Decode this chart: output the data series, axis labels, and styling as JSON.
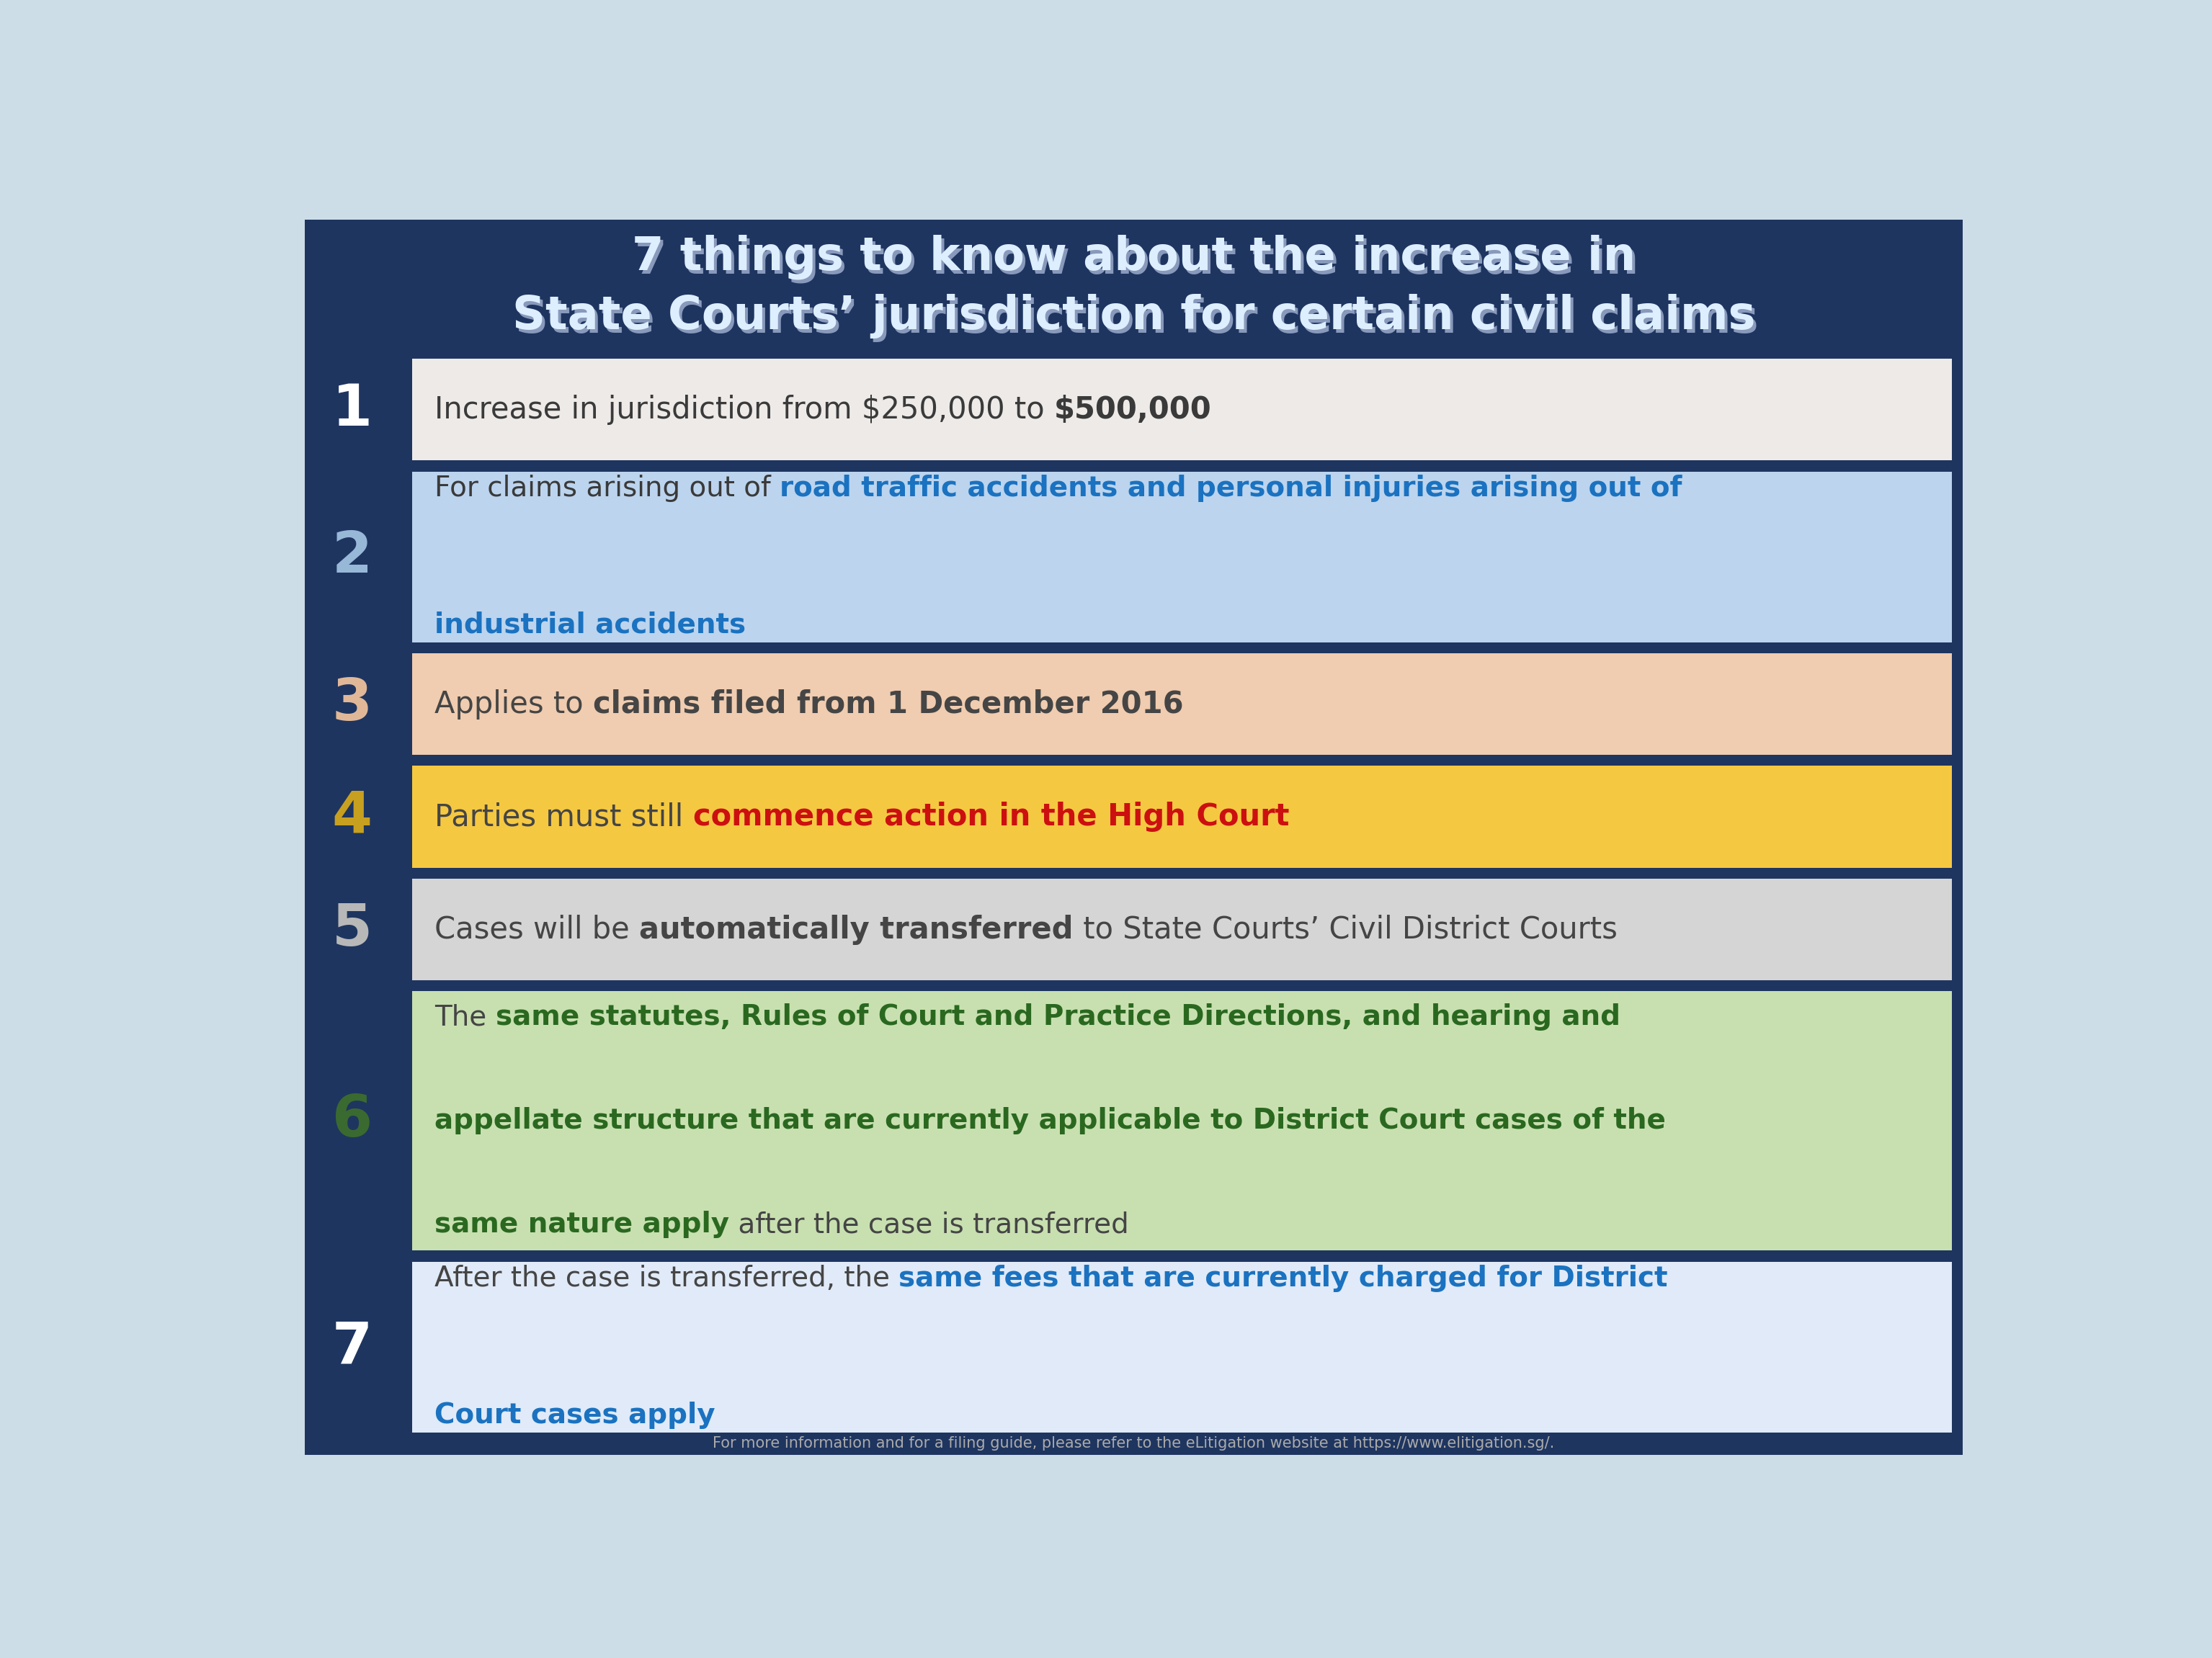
{
  "title_line1": "7 things to know about the increase in",
  "title_line2": "State Courts’ jurisdiction for certain civil claims",
  "bg_outer": "#ccdde8",
  "bg_main": "#1e3560",
  "footer_text": "For more information and for a filing guide, please refer to the eLitigation website at https://www.elitigation.sg/.",
  "items": [
    {
      "number": "1",
      "number_color": "#ffffff",
      "box_color": "#edeae8",
      "n_lines": 1,
      "lines": [
        [
          {
            "text": "Increase in jurisdiction from $250,000 to ",
            "bold": false,
            "color": "#3a3a3a"
          },
          {
            "text": "$500,000",
            "bold": true,
            "color": "#3a3a3a"
          }
        ]
      ]
    },
    {
      "number": "2",
      "number_color": "#98b8d8",
      "box_color": "#bcd4ee",
      "n_lines": 2,
      "lines": [
        [
          {
            "text": "For claims arising out of ",
            "bold": false,
            "color": "#3a3a3a"
          },
          {
            "text": "road traffic accidents and personal injuries arising out of",
            "bold": true,
            "color": "#1a72c0"
          }
        ],
        [
          {
            "text": "industrial accidents",
            "bold": true,
            "color": "#1a72c0"
          }
        ]
      ]
    },
    {
      "number": "3",
      "number_color": "#e0b898",
      "box_color": "#f0ccb0",
      "n_lines": 1,
      "lines": [
        [
          {
            "text": "Applies to ",
            "bold": false,
            "color": "#454545"
          },
          {
            "text": "claims filed from 1 December 2016",
            "bold": true,
            "color": "#454545"
          }
        ]
      ]
    },
    {
      "number": "4",
      "number_color": "#c8a020",
      "box_color": "#f5c842",
      "n_lines": 1,
      "lines": [
        [
          {
            "text": "Parties must still ",
            "bold": false,
            "color": "#454545"
          },
          {
            "text": "commence action in the High Court",
            "bold": true,
            "color": "#cc1010"
          }
        ]
      ]
    },
    {
      "number": "5",
      "number_color": "#b8b8b8",
      "box_color": "#d5d5d5",
      "n_lines": 1,
      "lines": [
        [
          {
            "text": "Cases will be ",
            "bold": false,
            "color": "#454545"
          },
          {
            "text": "automatically transferred",
            "bold": true,
            "color": "#454545"
          },
          {
            "text": " to State Courts’ Civil District Courts",
            "bold": false,
            "color": "#454545"
          }
        ]
      ]
    },
    {
      "number": "6",
      "number_color": "#3a6a30",
      "box_color": "#c8e0b0",
      "n_lines": 3,
      "lines": [
        [
          {
            "text": "The ",
            "bold": false,
            "color": "#454545"
          },
          {
            "text": "same statutes, Rules of Court and Practice Directions, and hearing and",
            "bold": true,
            "color": "#2a6820"
          }
        ],
        [
          {
            "text": "appellate structure that are currently applicable to District Court cases of the",
            "bold": true,
            "color": "#2a6820"
          }
        ],
        [
          {
            "text": "same nature apply",
            "bold": true,
            "color": "#2a6820"
          },
          {
            "text": " after the case is transferred",
            "bold": false,
            "color": "#454545"
          }
        ]
      ]
    },
    {
      "number": "7",
      "number_color": "#ffffff",
      "box_color": "#e0eaf8",
      "n_lines": 2,
      "lines": [
        [
          {
            "text": "After the case is transferred, the ",
            "bold": false,
            "color": "#454545"
          },
          {
            "text": "same fees that are currently charged for District",
            "bold": true,
            "color": "#1a72c0"
          }
        ],
        [
          {
            "text": "Court cases apply",
            "bold": true,
            "color": "#1a72c0"
          }
        ]
      ]
    }
  ]
}
